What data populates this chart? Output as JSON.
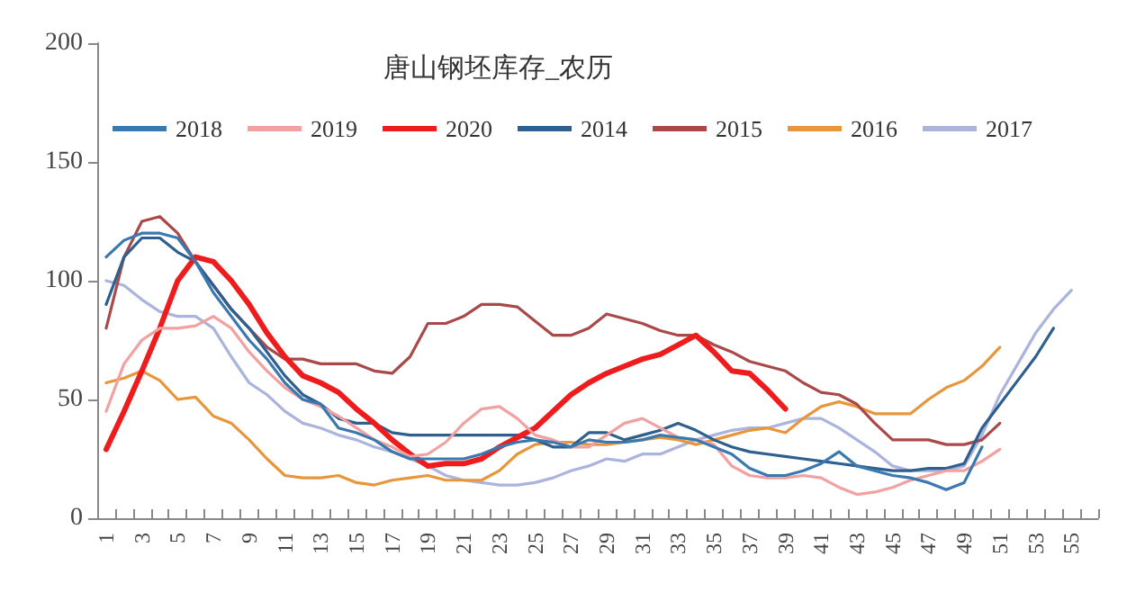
{
  "chart_data": {
    "type": "line",
    "title": "唐山钢坯库存_农历",
    "categories": [
      "1",
      null,
      "3",
      null,
      "5",
      null,
      "7",
      null,
      "9",
      null,
      "11",
      null,
      "13",
      null,
      "15",
      null,
      "17",
      null,
      "19",
      null,
      "21",
      null,
      "23",
      null,
      "25",
      null,
      "27",
      null,
      "29",
      null,
      "31",
      null,
      "33",
      null,
      "35",
      null,
      "37",
      null,
      "39",
      null,
      "41",
      null,
      "43",
      null,
      "45",
      null,
      "47",
      null,
      "49",
      null,
      "51",
      null,
      "53",
      null,
      "55",
      null
    ],
    "series": [
      {
        "name": "2018",
        "color": "#3a78b0",
        "values": [
          110,
          117,
          120,
          120,
          118,
          108,
          95,
          85,
          75,
          67,
          57,
          50,
          48,
          38,
          36,
          33,
          28,
          25,
          25,
          25,
          25,
          27,
          30,
          32,
          33,
          32,
          30,
          33,
          32,
          32,
          33,
          35,
          34,
          33,
          30,
          27,
          21,
          18,
          18,
          20,
          23,
          28,
          22,
          20,
          18,
          17,
          15,
          12,
          15,
          30,
          null,
          null,
          null,
          null,
          null,
          null
        ]
      },
      {
        "name": "2019",
        "color": "#f2a0a0",
        "values": [
          45,
          65,
          75,
          80,
          80,
          81,
          85,
          80,
          70,
          62,
          55,
          50,
          47,
          43,
          38,
          33,
          30,
          26,
          27,
          32,
          40,
          46,
          47,
          42,
          35,
          33,
          30,
          30,
          35,
          40,
          42,
          38,
          34,
          33,
          31,
          22,
          18,
          17,
          17,
          18,
          17,
          13,
          10,
          11,
          13,
          16,
          18,
          20,
          20,
          24,
          29,
          null,
          null,
          null,
          null,
          null
        ]
      },
      {
        "name": "2020",
        "color": "#ee1c1c",
        "values": [
          29,
          45,
          62,
          80,
          100,
          110,
          108,
          100,
          90,
          78,
          68,
          60,
          57,
          53,
          46,
          40,
          33,
          27,
          22,
          23,
          23,
          25,
          30,
          34,
          38,
          45,
          52,
          57,
          61,
          64,
          67,
          69,
          73,
          77,
          70,
          62,
          61,
          54,
          46,
          null,
          null,
          null,
          null,
          null,
          null,
          null,
          null,
          null,
          null,
          null,
          null,
          null,
          null,
          null,
          null,
          null
        ]
      },
      {
        "name": "2014",
        "color": "#2e5f8f",
        "values": [
          90,
          110,
          118,
          118,
          112,
          108,
          98,
          88,
          80,
          70,
          60,
          52,
          48,
          42,
          40,
          40,
          36,
          35,
          35,
          35,
          35,
          35,
          35,
          35,
          33,
          30,
          30,
          36,
          36,
          33,
          35,
          37,
          40,
          37,
          33,
          30,
          28,
          27,
          26,
          25,
          24,
          23,
          22,
          21,
          20,
          20,
          21,
          21,
          23,
          38,
          48,
          58,
          68,
          80,
          null,
          null
        ]
      },
      {
        "name": "2015",
        "color": "#a9494a",
        "values": [
          80,
          110,
          125,
          127,
          120,
          108,
          98,
          88,
          80,
          72,
          67,
          67,
          65,
          65,
          65,
          62,
          61,
          68,
          82,
          82,
          85,
          90,
          90,
          89,
          83,
          77,
          77,
          80,
          86,
          84,
          82,
          79,
          77,
          77,
          73,
          70,
          66,
          64,
          62,
          57,
          53,
          52,
          48,
          40,
          33,
          33,
          33,
          31,
          31,
          33,
          40,
          null,
          null,
          null,
          null,
          null
        ]
      },
      {
        "name": "2016",
        "color": "#e8963c",
        "values": [
          57,
          59,
          62,
          58,
          50,
          51,
          43,
          40,
          33,
          25,
          18,
          17,
          17,
          18,
          15,
          14,
          16,
          17,
          18,
          16,
          16,
          16,
          20,
          27,
          31,
          32,
          32,
          31,
          31,
          32,
          33,
          34,
          33,
          31,
          33,
          35,
          37,
          38,
          36,
          42,
          47,
          49,
          47,
          44,
          44,
          44,
          50,
          55,
          58,
          64,
          72,
          null,
          null,
          null,
          null,
          null
        ]
      },
      {
        "name": "2017",
        "color": "#aab4dc",
        "values": [
          100,
          98,
          92,
          87,
          85,
          85,
          80,
          68,
          57,
          52,
          45,
          40,
          38,
          35,
          33,
          30,
          28,
          25,
          22,
          18,
          16,
          15,
          14,
          14,
          15,
          17,
          20,
          22,
          25,
          24,
          27,
          27,
          30,
          33,
          35,
          37,
          38,
          38,
          40,
          42,
          42,
          38,
          33,
          28,
          22,
          20,
          20,
          20,
          22,
          35,
          52,
          65,
          78,
          88,
          96,
          null
        ]
      }
    ],
    "ylim": [
      0,
      200
    ],
    "yticks": [
      0,
      50,
      100,
      150,
      200
    ],
    "grid": false,
    "legend": "top",
    "marker": "none",
    "line_style": "solid"
  }
}
